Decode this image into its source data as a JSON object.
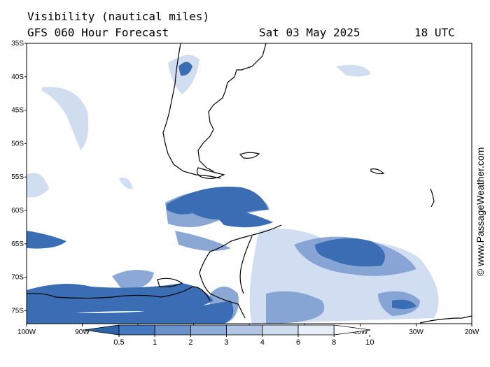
{
  "header": {
    "title": "Visibility (nautical miles)",
    "subtitle": "GFS 060 Hour Forecast",
    "date": "Sat 03 May 2025",
    "time": "18 UTC"
  },
  "watermark": "© www.PassageWeather.com",
  "axes": {
    "lat_labels": [
      "35S",
      "40S",
      "45S",
      "50S",
      "55S",
      "60S",
      "65S",
      "70S",
      "75S"
    ],
    "lon_labels": [
      "100W",
      "90W",
      "80W",
      "70W",
      "60W",
      "50W",
      "40W",
      "30W",
      "20W"
    ]
  },
  "legend": {
    "labels": [
      "0.5",
      "1",
      "2",
      "3",
      "4",
      "6",
      "8",
      "10"
    ],
    "colors": [
      "#2f63a8",
      "#4678bf",
      "#6a92cc",
      "#8eadd8",
      "#b0c6e4",
      "#cfdcee",
      "#e7eef8",
      "#ffffff"
    ]
  },
  "colors": {
    "fog_dark": "#3a6db3",
    "fog_mid": "#7f9fd1",
    "fog_light": "#c5d5ec",
    "coast": "#000000"
  }
}
